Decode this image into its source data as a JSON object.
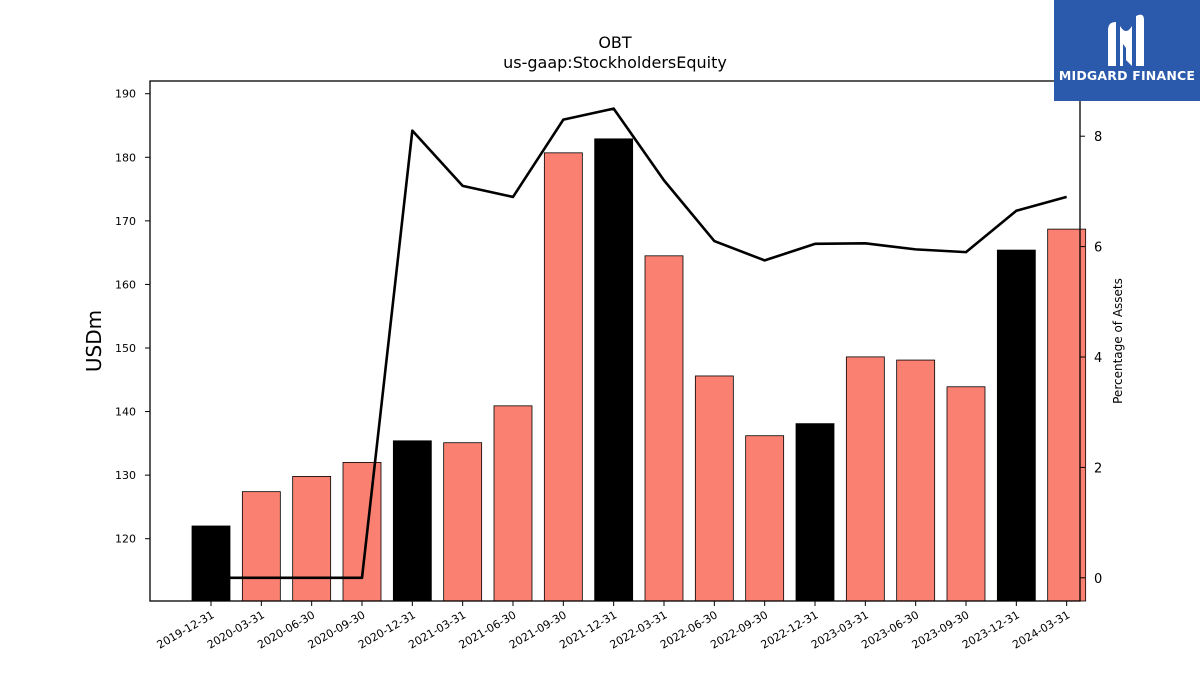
{
  "title": "OBT",
  "subtitle": "us-gaap:StockholdersEquity",
  "logo": {
    "text": "MIDGARD FINANCE",
    "background": "#2b5aad"
  },
  "chart_data": {
    "type": "bar",
    "categories": [
      "2019-12-31",
      "2020-03-31",
      "2020-06-30",
      "2020-09-30",
      "2020-12-31",
      "2021-03-31",
      "2021-06-30",
      "2021-09-30",
      "2021-12-31",
      "2022-03-31",
      "2022-06-30",
      "2022-09-30",
      "2022-12-31",
      "2023-03-31",
      "2023-06-30",
      "2023-09-30",
      "2023-12-31",
      "2024-03-31"
    ],
    "bars": {
      "values": [
        122.0,
        127.4,
        129.8,
        132.0,
        135.4,
        135.1,
        140.9,
        180.7,
        182.9,
        164.5,
        145.6,
        136.2,
        138.1,
        148.6,
        148.1,
        143.9,
        165.4,
        168.7
      ],
      "colors": [
        "#000000",
        "#fa8072",
        "#fa8072",
        "#fa8072",
        "#000000",
        "#fa8072",
        "#fa8072",
        "#fa8072",
        "#000000",
        "#fa8072",
        "#fa8072",
        "#fa8072",
        "#000000",
        "#fa8072",
        "#fa8072",
        "#fa8072",
        "#000000",
        "#fa8072"
      ]
    },
    "line": {
      "values": [
        0,
        0,
        0,
        0,
        8.1,
        7.1,
        6.9,
        8.3,
        8.5,
        7.2,
        6.1,
        5.75,
        6.05,
        6.06,
        5.95,
        5.9,
        6.65,
        6.9
      ],
      "color": "#000000"
    },
    "ylabel": "USDm",
    "y2label": "Percentage of Assets",
    "ylim": [
      110.2,
      192.0
    ],
    "y2lim": [
      -0.42,
      9.0
    ],
    "yticks": [
      120,
      130,
      140,
      150,
      160,
      170,
      180,
      190
    ],
    "y2ticks": [
      0,
      2,
      4,
      6,
      8
    ],
    "grid": false
  }
}
